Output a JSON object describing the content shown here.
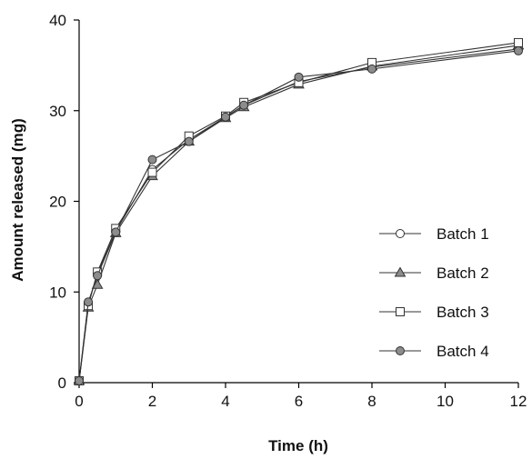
{
  "chart_data": {
    "type": "line",
    "title": "",
    "xlabel": "Time (h)",
    "ylabel": "Amount released (mg)",
    "xlim": [
      0,
      12
    ],
    "ylim": [
      0,
      40
    ],
    "xticks": [
      0,
      2,
      4,
      6,
      8,
      10,
      12
    ],
    "yticks": [
      0,
      10,
      20,
      30,
      40
    ],
    "grid": false,
    "legend_position": "right",
    "series": [
      {
        "name": "Batch 1",
        "marker": "circle-open",
        "x": [
          0,
          0.25,
          0.5,
          1,
          2,
          3,
          4,
          4.5,
          6,
          8,
          12
        ],
        "y": [
          0.2,
          8.7,
          12.0,
          16.7,
          23.5,
          26.8,
          29.3,
          30.6,
          33.2,
          34.8,
          36.8
        ]
      },
      {
        "name": "Batch 2",
        "marker": "triangle-gray",
        "x": [
          0,
          0.25,
          0.5,
          1,
          2,
          3,
          4,
          4.5,
          6,
          8,
          12
        ],
        "y": [
          0.2,
          8.3,
          10.8,
          16.5,
          22.8,
          26.6,
          29.2,
          30.4,
          32.9,
          34.9,
          37.2
        ]
      },
      {
        "name": "Batch 3",
        "marker": "square-open",
        "x": [
          0,
          0.25,
          0.5,
          1,
          2,
          3,
          4,
          4.5,
          6,
          8,
          12
        ],
        "y": [
          0.2,
          8.5,
          12.2,
          17.0,
          23.2,
          27.2,
          29.4,
          30.9,
          33.1,
          35.3,
          37.5
        ]
      },
      {
        "name": "Batch 4",
        "marker": "circle-gray",
        "x": [
          0,
          0.25,
          0.5,
          1,
          2,
          3,
          4,
          4.5,
          6,
          8,
          12
        ],
        "y": [
          0.2,
          8.9,
          11.8,
          16.6,
          24.6,
          26.6,
          29.3,
          30.6,
          33.7,
          34.6,
          36.6
        ]
      }
    ]
  },
  "colors": {
    "line": "#333333",
    "marker_gray": "#8c8c8c",
    "marker_open": "#ffffff"
  }
}
